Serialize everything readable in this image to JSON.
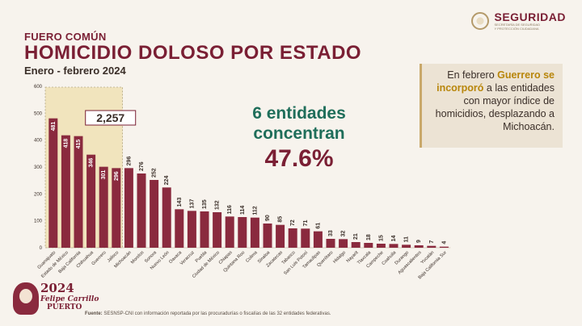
{
  "header": {
    "logo_text": "SEGURIDAD",
    "logo_sub1": "SECRETARÍA DE SEGURIDAD",
    "logo_sub2": "Y PROTECCIÓN CIUDADANA",
    "kicker": "FUERO COMÚN",
    "title": "HOMICIDIO DOLOSO POR ESTADO",
    "period": "Enero - febrero 2024"
  },
  "note": {
    "part1": "En febrero ",
    "highlight": "Guerrero se incorporó",
    "part2": " a las entidades con mayor índice de homicidios, desplazando a Michoacán."
  },
  "stats": {
    "line1": "6 entidades",
    "line2": "concentran",
    "percent": "47.6%"
  },
  "source": {
    "label": "Fuente:",
    "text": "SESNSP-CNI con información reportada por las procuradurías o fiscalías de las 32 entidades federativas."
  },
  "brand": {
    "year": "2024",
    "name": "Felipe Carrillo",
    "port": "PUERTO"
  },
  "colors": {
    "bar": "#8a2a3e",
    "highlight_box": "#f0dfae",
    "title": "#7a1f34",
    "accent_green": "#1f6e5a"
  },
  "chart_data": {
    "type": "bar",
    "categories": [
      "Guanajuato",
      "Estado de México",
      "Baja California",
      "Chihuahua",
      "Guerrero",
      "Jalisco",
      "Michoacán",
      "Morelos",
      "Sonora",
      "Nuevo León",
      "Oaxaca",
      "Veracruz",
      "Puebla",
      "Ciudad de México",
      "Chiapas",
      "Quintana Roo",
      "Colima",
      "Sinaloa",
      "Zacatecas",
      "Tabasco",
      "San Luis Potosí",
      "Tamaulipas",
      "Querétaro",
      "Hidalgo",
      "Nayarit",
      "Tlaxcala",
      "Campeche",
      "Coahuila",
      "Durango",
      "Aguascalientes",
      "Yucatán",
      "Baja California Sur"
    ],
    "values": [
      481,
      418,
      415,
      346,
      301,
      296,
      296,
      276,
      252,
      224,
      143,
      137,
      135,
      132,
      116,
      114,
      112,
      90,
      85,
      72,
      71,
      61,
      33,
      32,
      21,
      18,
      15,
      14,
      11,
      9,
      7,
      4
    ],
    "yticks": [
      0,
      100,
      200,
      300,
      400,
      500,
      600
    ],
    "ylim": [
      0,
      600
    ],
    "highlight_count": 6,
    "highlight_total": "2,257"
  }
}
